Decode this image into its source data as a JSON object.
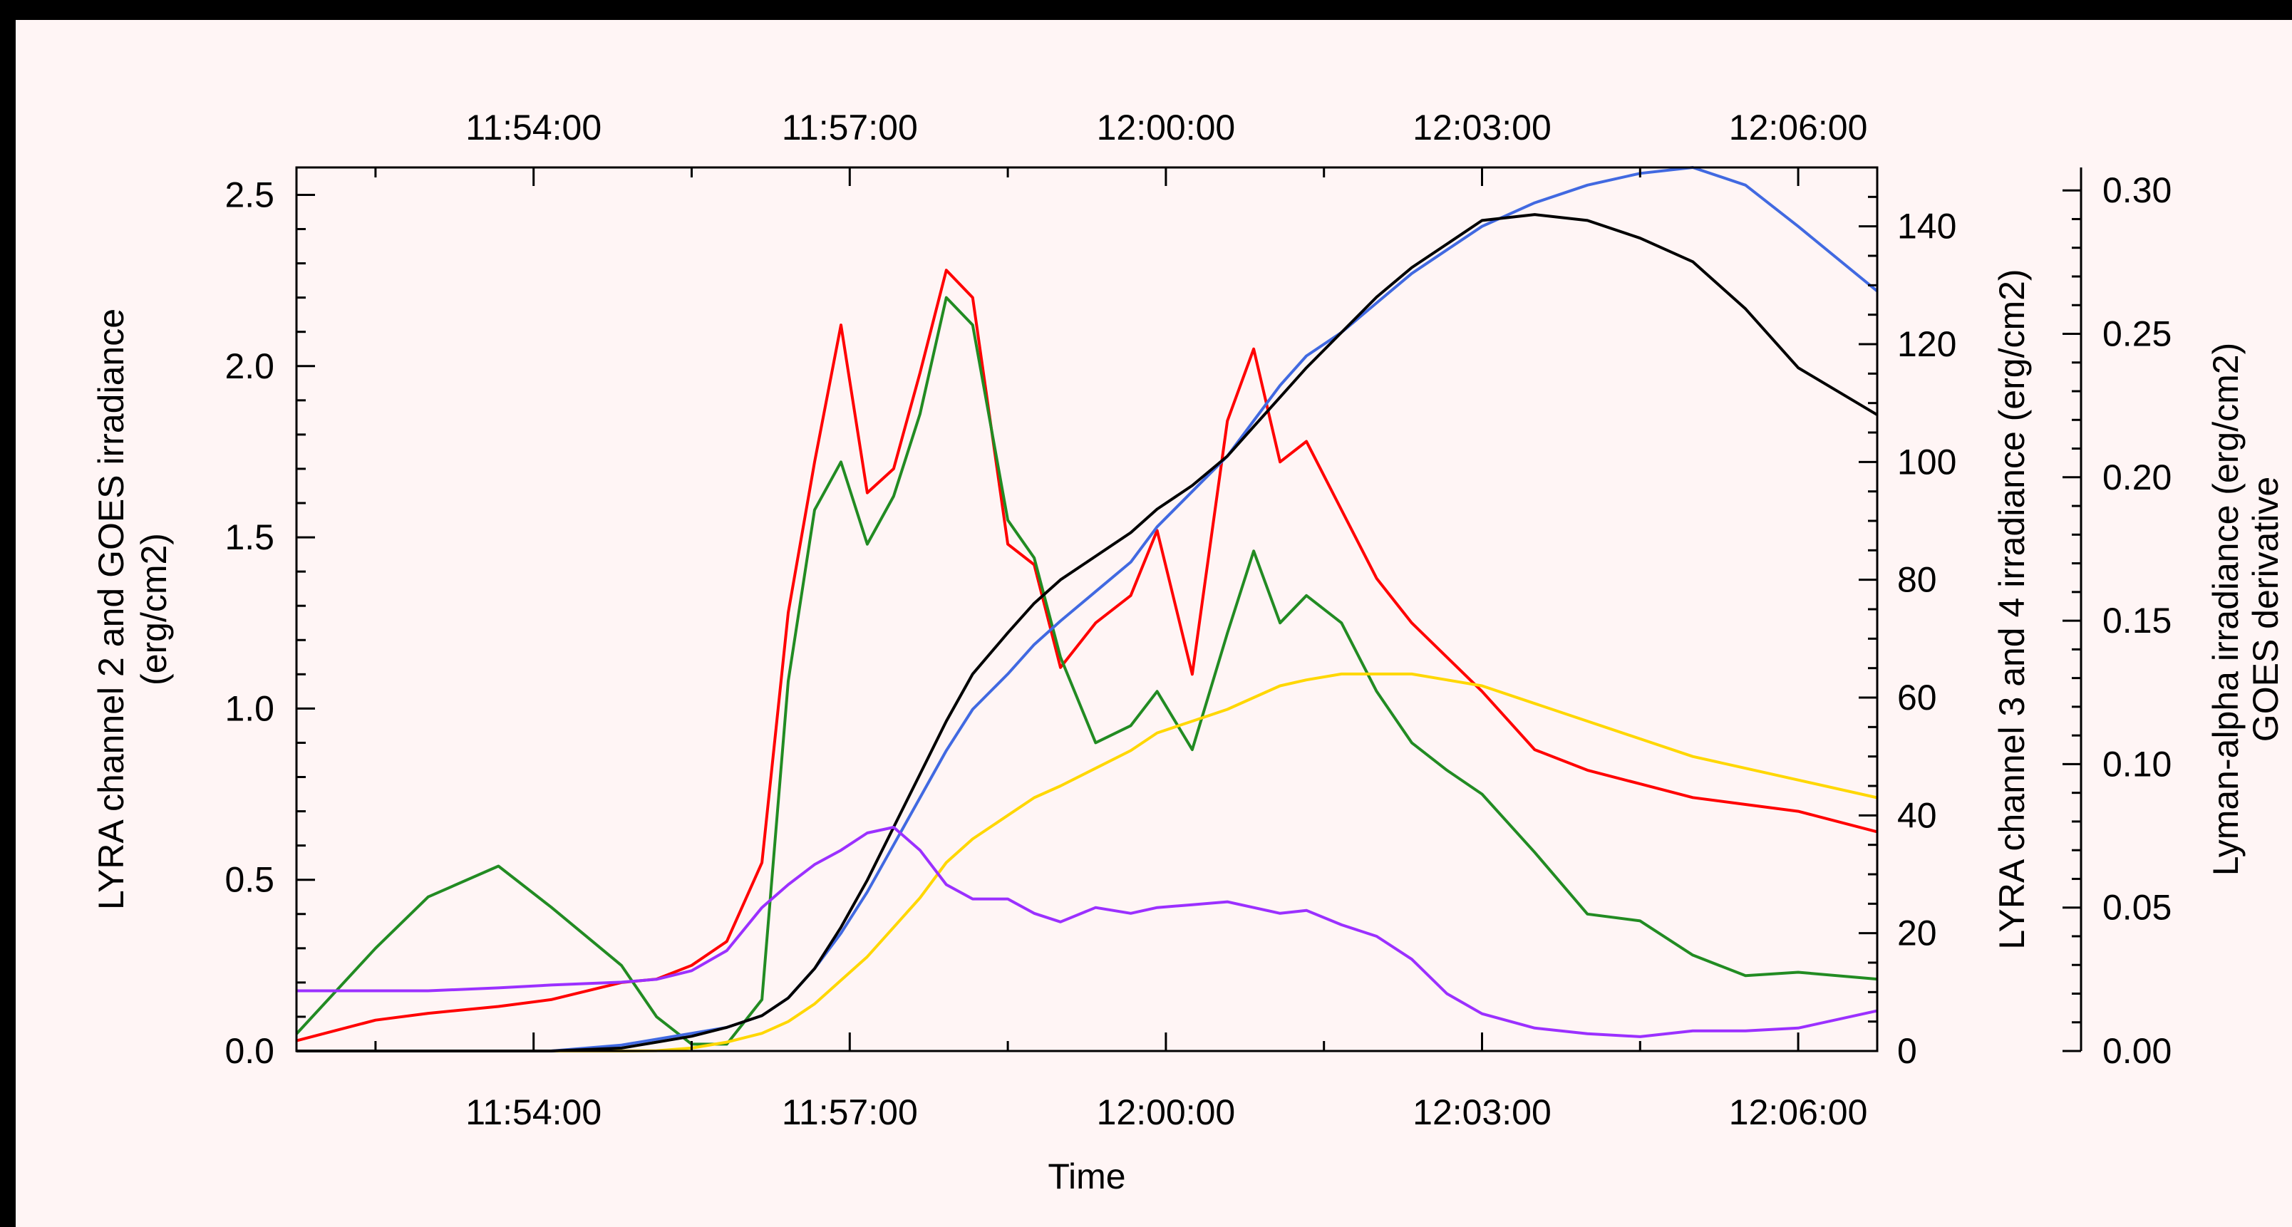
{
  "chart_data": {
    "type": "line",
    "title": "",
    "xlabel": "Time",
    "x_tick_labels": [
      "11:54:00",
      "11:57:00",
      "12:00:00",
      "12:03:00",
      "12:06:00"
    ],
    "x_range": [
      "11:51:45",
      "11:66:45"
    ],
    "x_range_minutes": {
      "start": "11:51:45",
      "end": "12:06:45"
    },
    "left_axis": {
      "label_line1": "LYRA channel 2 and GOES irradiance",
      "label_line2": "(erg/cm2)",
      "range": [
        0,
        2.58
      ],
      "ticks": [
        "0.0",
        "0.5",
        "1.0",
        "1.5",
        "2.0",
        "2.5"
      ]
    },
    "right_axis_1": {
      "label": "LYRA channel 3 and 4 irradiance (erg/cm2)",
      "range": [
        0,
        150
      ],
      "ticks": [
        "0",
        "20",
        "40",
        "60",
        "80",
        "100",
        "120",
        "140"
      ]
    },
    "right_axis_2": {
      "label_line1": "Lyman-alpha irradiance (erg/cm2)",
      "label_line2": "GOES derivative",
      "range": [
        0,
        0.308
      ],
      "ticks": [
        "0.00",
        "0.05",
        "0.10",
        "0.15",
        "0.20",
        "0.25",
        "0.30"
      ]
    },
    "x": [
      "11:51:45",
      "11:52:30",
      "11:53:00",
      "11:53:40",
      "11:54:10",
      "11:54:50",
      "11:55:10",
      "11:55:30",
      "11:55:50",
      "11:56:10",
      "11:56:25",
      "11:56:40",
      "11:56:55",
      "11:57:10",
      "11:57:25",
      "11:57:40",
      "11:57:55",
      "11:58:10",
      "11:58:30",
      "11:58:45",
      "11:59:00",
      "11:59:20",
      "11:59:40",
      "11:59:55",
      "12:00:15",
      "12:00:35",
      "12:00:50",
      "12:01:05",
      "12:01:20",
      "12:01:40",
      "12:02:00",
      "12:02:20",
      "12:02:40",
      "12:03:00",
      "12:03:30",
      "12:04:00",
      "12:04:30",
      "12:05:00",
      "12:05:30",
      "12:06:00",
      "12:06:45"
    ],
    "series": [
      {
        "color": "#ff0000",
        "axis": "left",
        "values": [
          0.03,
          0.09,
          0.11,
          0.13,
          0.15,
          0.2,
          0.21,
          0.25,
          0.32,
          0.55,
          1.28,
          1.72,
          2.12,
          1.63,
          1.7,
          1.98,
          2.28,
          2.2,
          1.48,
          1.42,
          1.12,
          1.25,
          1.33,
          1.52,
          1.1,
          1.84,
          2.05,
          1.72,
          1.78,
          1.58,
          1.38,
          1.25,
          1.15,
          1.05,
          0.88,
          0.82,
          0.78,
          0.74,
          0.72,
          0.7,
          0.64
        ]
      },
      {
        "color": "#228b22",
        "axis": "left",
        "values": [
          0.05,
          0.3,
          0.45,
          0.54,
          0.42,
          0.25,
          0.1,
          0.02,
          0.02,
          0.15,
          1.08,
          1.58,
          1.72,
          1.48,
          1.62,
          1.86,
          2.2,
          2.12,
          1.55,
          1.44,
          1.15,
          0.9,
          0.95,
          1.05,
          0.88,
          1.22,
          1.46,
          1.25,
          1.33,
          1.25,
          1.05,
          0.9,
          0.82,
          0.75,
          0.58,
          0.4,
          0.38,
          0.28,
          0.22,
          0.23,
          0.21
        ]
      },
      {
        "color": "#ffd700",
        "axis": "right_1",
        "values": [
          0,
          0,
          0,
          0,
          0,
          0,
          0.05,
          0.5,
          1.5,
          3,
          5,
          8,
          12,
          16,
          21,
          26,
          32,
          36,
          40,
          43,
          45,
          48,
          51,
          54,
          56,
          58,
          60,
          62,
          63,
          64,
          64,
          64,
          63,
          62,
          59,
          56,
          53,
          50,
          48,
          46,
          43
        ]
      },
      {
        "color": "#4169e1",
        "axis": "right_1",
        "values": [
          0,
          0,
          0,
          0,
          0,
          1,
          2,
          3,
          4,
          6,
          9,
          14,
          20,
          27,
          35,
          43,
          51,
          58,
          64,
          69,
          73,
          78,
          83,
          89,
          95,
          101,
          107,
          113,
          118,
          122,
          127,
          132,
          136,
          140,
          144,
          147,
          149,
          150,
          147,
          140,
          129
        ]
      },
      {
        "color": "#000000",
        "axis": "right_1",
        "values": [
          0,
          0,
          0,
          0,
          0,
          0.5,
          1.5,
          2.5,
          4,
          6,
          9,
          14,
          21,
          29,
          38,
          47,
          56,
          64,
          71,
          76,
          80,
          84,
          88,
          92,
          96,
          101,
          106,
          111,
          116,
          122,
          128,
          133,
          137,
          141,
          142,
          141,
          138,
          134,
          126,
          116,
          108
        ]
      },
      {
        "color": "#9b30ff",
        "axis": "right_2",
        "values": [
          0.021,
          0.021,
          0.021,
          0.022,
          0.023,
          0.024,
          0.025,
          0.028,
          0.035,
          0.05,
          0.058,
          0.065,
          0.07,
          0.076,
          0.078,
          0.07,
          0.058,
          0.053,
          0.053,
          0.048,
          0.045,
          0.05,
          0.048,
          0.05,
          0.051,
          0.052,
          0.05,
          0.048,
          0.049,
          0.044,
          0.04,
          0.032,
          0.02,
          0.013,
          0.008,
          0.006,
          0.005,
          0.007,
          0.007,
          0.008,
          0.014
        ]
      }
    ]
  }
}
